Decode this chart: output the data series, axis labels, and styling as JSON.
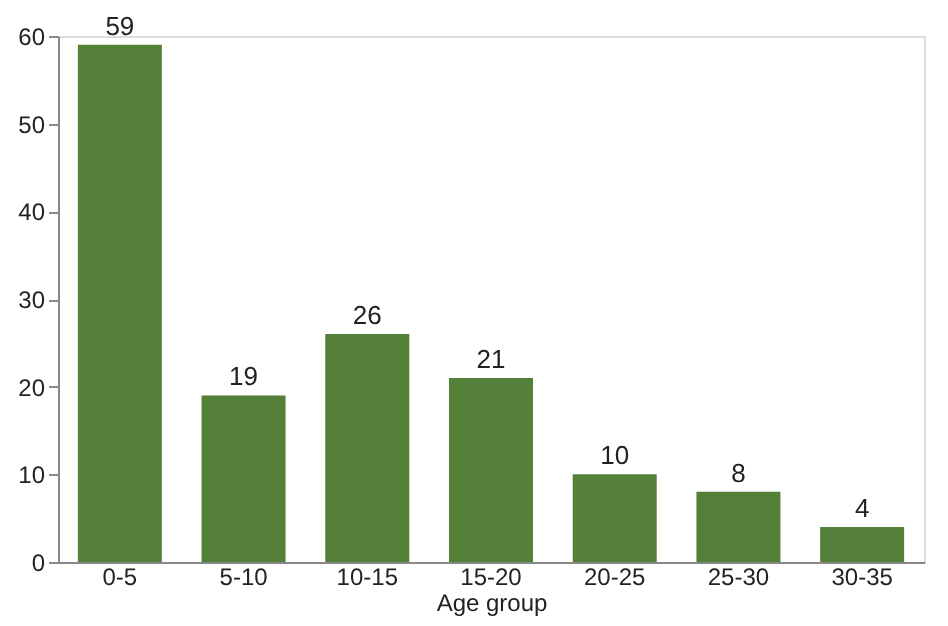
{
  "chart_data": {
    "type": "bar",
    "xlabel": "Age group",
    "categories": [
      "0-5",
      "5-10",
      "10-15",
      "15-20",
      "20-25",
      "25-30",
      "30-35"
    ],
    "values": [
      59,
      19,
      26,
      21,
      10,
      8,
      4
    ],
    "color": "#55803a",
    "ylim": [
      0,
      60
    ],
    "yticks": [
      0,
      10,
      20,
      30,
      40,
      50,
      60
    ],
    "grid": false,
    "data_labels": true
  }
}
